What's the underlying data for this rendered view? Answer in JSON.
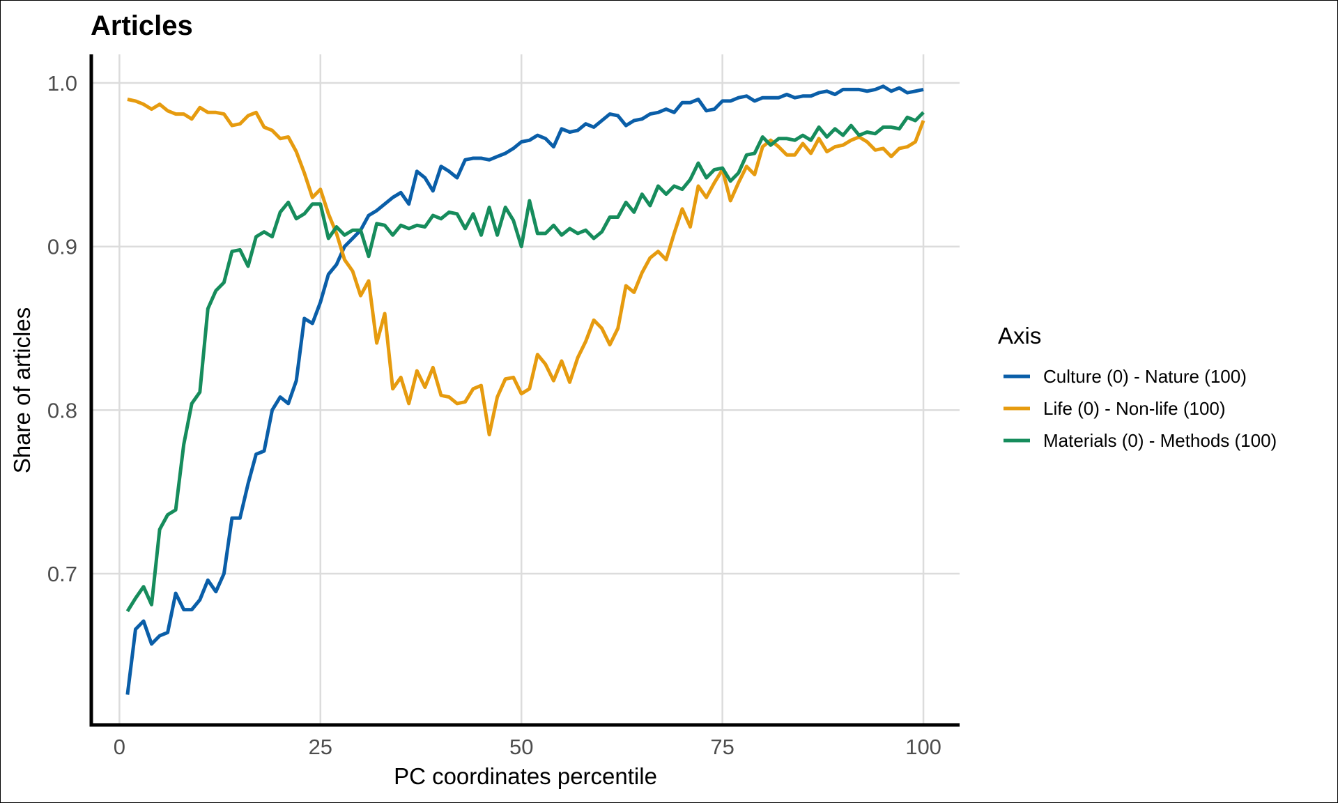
{
  "chart_data": {
    "type": "line",
    "title": "Articles",
    "xlabel": "PC coordinates percentile",
    "ylabel": "Share of articles",
    "xlim": [
      -3.5,
      104.5
    ],
    "ylim": [
      0.6075,
      1.0175
    ],
    "x_ticks": [
      0,
      25,
      50,
      75,
      100
    ],
    "y_ticks": [
      0.7,
      0.8,
      0.9,
      1.0
    ],
    "x_tick_labels": [
      "0",
      "25",
      "50",
      "75",
      "100"
    ],
    "y_tick_labels": [
      "0.7",
      "0.8",
      "0.9",
      "1.0"
    ],
    "grid": true,
    "legend": {
      "title": "Axis",
      "position": "right"
    },
    "series": [
      {
        "name": "Culture (0) - Nature (100)",
        "color": "#0a5ea8",
        "points": [
          [
            1,
            0.626
          ],
          [
            2,
            0.666
          ],
          [
            3,
            0.671
          ],
          [
            4,
            0.657
          ],
          [
            5,
            0.662
          ],
          [
            6,
            0.664
          ],
          [
            7,
            0.688
          ],
          [
            8,
            0.678
          ],
          [
            9,
            0.678
          ],
          [
            10,
            0.684
          ],
          [
            11,
            0.696
          ],
          [
            12,
            0.689
          ],
          [
            13,
            0.7
          ],
          [
            14,
            0.734
          ],
          [
            15,
            0.734
          ],
          [
            16,
            0.755
          ],
          [
            17,
            0.773
          ],
          [
            18,
            0.775
          ],
          [
            19,
            0.8
          ],
          [
            20,
            0.808
          ],
          [
            21,
            0.804
          ],
          [
            22,
            0.818
          ],
          [
            23,
            0.856
          ],
          [
            24,
            0.853
          ],
          [
            25,
            0.866
          ],
          [
            26,
            0.883
          ],
          [
            27,
            0.889
          ],
          [
            28,
            0.9
          ],
          [
            29,
            0.905
          ],
          [
            30,
            0.91
          ],
          [
            31,
            0.919
          ],
          [
            32,
            0.922
          ],
          [
            33,
            0.926
          ],
          [
            34,
            0.93
          ],
          [
            35,
            0.933
          ],
          [
            36,
            0.926
          ],
          [
            37,
            0.946
          ],
          [
            38,
            0.942
          ],
          [
            39,
            0.934
          ],
          [
            40,
            0.949
          ],
          [
            41,
            0.946
          ],
          [
            42,
            0.942
          ],
          [
            43,
            0.953
          ],
          [
            44,
            0.954
          ],
          [
            45,
            0.954
          ],
          [
            46,
            0.953
          ],
          [
            47,
            0.955
          ],
          [
            48,
            0.957
          ],
          [
            49,
            0.96
          ],
          [
            50,
            0.964
          ],
          [
            51,
            0.965
          ],
          [
            52,
            0.968
          ],
          [
            53,
            0.966
          ],
          [
            54,
            0.961
          ],
          [
            55,
            0.972
          ],
          [
            56,
            0.97
          ],
          [
            57,
            0.971
          ],
          [
            58,
            0.975
          ],
          [
            59,
            0.973
          ],
          [
            60,
            0.977
          ],
          [
            61,
            0.981
          ],
          [
            62,
            0.98
          ],
          [
            63,
            0.974
          ],
          [
            64,
            0.977
          ],
          [
            65,
            0.978
          ],
          [
            66,
            0.981
          ],
          [
            67,
            0.982
          ],
          [
            68,
            0.984
          ],
          [
            69,
            0.982
          ],
          [
            70,
            0.988
          ],
          [
            71,
            0.988
          ],
          [
            72,
            0.99
          ],
          [
            73,
            0.983
          ],
          [
            74,
            0.984
          ],
          [
            75,
            0.989
          ],
          [
            76,
            0.989
          ],
          [
            77,
            0.991
          ],
          [
            78,
            0.992
          ],
          [
            79,
            0.989
          ],
          [
            80,
            0.991
          ],
          [
            81,
            0.991
          ],
          [
            82,
            0.991
          ],
          [
            83,
            0.993
          ],
          [
            84,
            0.991
          ],
          [
            85,
            0.992
          ],
          [
            86,
            0.992
          ],
          [
            87,
            0.994
          ],
          [
            88,
            0.995
          ],
          [
            89,
            0.993
          ],
          [
            90,
            0.996
          ],
          [
            91,
            0.996
          ],
          [
            92,
            0.996
          ],
          [
            93,
            0.995
          ],
          [
            94,
            0.996
          ],
          [
            95,
            0.998
          ],
          [
            96,
            0.995
          ],
          [
            97,
            0.997
          ],
          [
            98,
            0.994
          ],
          [
            99,
            0.995
          ],
          [
            100,
            0.996
          ]
        ]
      },
      {
        "name": "Life (0) - Non-life (100)",
        "color": "#e69b0f",
        "points": [
          [
            1,
            0.99
          ],
          [
            2,
            0.989
          ],
          [
            3,
            0.987
          ],
          [
            4,
            0.984
          ],
          [
            5,
            0.987
          ],
          [
            6,
            0.983
          ],
          [
            7,
            0.981
          ],
          [
            8,
            0.981
          ],
          [
            9,
            0.978
          ],
          [
            10,
            0.985
          ],
          [
            11,
            0.982
          ],
          [
            12,
            0.982
          ],
          [
            13,
            0.981
          ],
          [
            14,
            0.974
          ],
          [
            15,
            0.975
          ],
          [
            16,
            0.98
          ],
          [
            17,
            0.982
          ],
          [
            18,
            0.973
          ],
          [
            19,
            0.971
          ],
          [
            20,
            0.966
          ],
          [
            21,
            0.967
          ],
          [
            22,
            0.958
          ],
          [
            23,
            0.945
          ],
          [
            24,
            0.93
          ],
          [
            25,
            0.935
          ],
          [
            26,
            0.92
          ],
          [
            27,
            0.908
          ],
          [
            28,
            0.892
          ],
          [
            29,
            0.885
          ],
          [
            30,
            0.87
          ],
          [
            31,
            0.879
          ],
          [
            32,
            0.841
          ],
          [
            33,
            0.859
          ],
          [
            34,
            0.813
          ],
          [
            35,
            0.82
          ],
          [
            36,
            0.804
          ],
          [
            37,
            0.824
          ],
          [
            38,
            0.814
          ],
          [
            39,
            0.826
          ],
          [
            40,
            0.809
          ],
          [
            41,
            0.808
          ],
          [
            42,
            0.804
          ],
          [
            43,
            0.805
          ],
          [
            44,
            0.813
          ],
          [
            45,
            0.815
          ],
          [
            46,
            0.785
          ],
          [
            47,
            0.808
          ],
          [
            48,
            0.819
          ],
          [
            49,
            0.82
          ],
          [
            50,
            0.81
          ],
          [
            51,
            0.813
          ],
          [
            52,
            0.834
          ],
          [
            53,
            0.828
          ],
          [
            54,
            0.818
          ],
          [
            55,
            0.83
          ],
          [
            56,
            0.817
          ],
          [
            57,
            0.832
          ],
          [
            58,
            0.842
          ],
          [
            59,
            0.855
          ],
          [
            60,
            0.85
          ],
          [
            61,
            0.84
          ],
          [
            62,
            0.85
          ],
          [
            63,
            0.876
          ],
          [
            64,
            0.872
          ],
          [
            65,
            0.884
          ],
          [
            66,
            0.893
          ],
          [
            67,
            0.897
          ],
          [
            68,
            0.892
          ],
          [
            69,
            0.908
          ],
          [
            70,
            0.923
          ],
          [
            71,
            0.912
          ],
          [
            72,
            0.937
          ],
          [
            73,
            0.93
          ],
          [
            74,
            0.939
          ],
          [
            75,
            0.947
          ],
          [
            76,
            0.928
          ],
          [
            77,
            0.939
          ],
          [
            78,
            0.949
          ],
          [
            79,
            0.944
          ],
          [
            80,
            0.961
          ],
          [
            81,
            0.965
          ],
          [
            82,
            0.961
          ],
          [
            83,
            0.956
          ],
          [
            84,
            0.956
          ],
          [
            85,
            0.963
          ],
          [
            86,
            0.957
          ],
          [
            87,
            0.966
          ],
          [
            88,
            0.958
          ],
          [
            89,
            0.961
          ],
          [
            90,
            0.962
          ],
          [
            91,
            0.965
          ],
          [
            92,
            0.967
          ],
          [
            93,
            0.964
          ],
          [
            94,
            0.959
          ],
          [
            95,
            0.96
          ],
          [
            96,
            0.955
          ],
          [
            97,
            0.96
          ],
          [
            98,
            0.961
          ],
          [
            99,
            0.964
          ],
          [
            100,
            0.977
          ]
        ]
      },
      {
        "name": "Materials (0) - Methods (100)",
        "color": "#168c5c",
        "points": [
          [
            1,
            0.677
          ],
          [
            2,
            0.685
          ],
          [
            3,
            0.692
          ],
          [
            4,
            0.681
          ],
          [
            5,
            0.727
          ],
          [
            6,
            0.736
          ],
          [
            7,
            0.739
          ],
          [
            8,
            0.779
          ],
          [
            9,
            0.804
          ],
          [
            10,
            0.811
          ],
          [
            11,
            0.862
          ],
          [
            12,
            0.873
          ],
          [
            13,
            0.878
          ],
          [
            14,
            0.897
          ],
          [
            15,
            0.898
          ],
          [
            16,
            0.888
          ],
          [
            17,
            0.906
          ],
          [
            18,
            0.909
          ],
          [
            19,
            0.906
          ],
          [
            20,
            0.921
          ],
          [
            21,
            0.927
          ],
          [
            22,
            0.917
          ],
          [
            23,
            0.92
          ],
          [
            24,
            0.926
          ],
          [
            25,
            0.926
          ],
          [
            26,
            0.905
          ],
          [
            27,
            0.912
          ],
          [
            28,
            0.907
          ],
          [
            29,
            0.91
          ],
          [
            30,
            0.91
          ],
          [
            31,
            0.894
          ],
          [
            32,
            0.914
          ],
          [
            33,
            0.913
          ],
          [
            34,
            0.907
          ],
          [
            35,
            0.913
          ],
          [
            36,
            0.911
          ],
          [
            37,
            0.913
          ],
          [
            38,
            0.912
          ],
          [
            39,
            0.919
          ],
          [
            40,
            0.917
          ],
          [
            41,
            0.921
          ],
          [
            42,
            0.92
          ],
          [
            43,
            0.911
          ],
          [
            44,
            0.92
          ],
          [
            45,
            0.907
          ],
          [
            46,
            0.924
          ],
          [
            47,
            0.907
          ],
          [
            48,
            0.924
          ],
          [
            49,
            0.916
          ],
          [
            50,
            0.9
          ],
          [
            51,
            0.928
          ],
          [
            52,
            0.908
          ],
          [
            53,
            0.908
          ],
          [
            54,
            0.913
          ],
          [
            55,
            0.907
          ],
          [
            56,
            0.911
          ],
          [
            57,
            0.908
          ],
          [
            58,
            0.91
          ],
          [
            59,
            0.905
          ],
          [
            60,
            0.909
          ],
          [
            61,
            0.918
          ],
          [
            62,
            0.918
          ],
          [
            63,
            0.927
          ],
          [
            64,
            0.921
          ],
          [
            65,
            0.932
          ],
          [
            66,
            0.925
          ],
          [
            67,
            0.937
          ],
          [
            68,
            0.932
          ],
          [
            69,
            0.937
          ],
          [
            70,
            0.935
          ],
          [
            71,
            0.941
          ],
          [
            72,
            0.951
          ],
          [
            73,
            0.942
          ],
          [
            74,
            0.947
          ],
          [
            75,
            0.948
          ],
          [
            76,
            0.94
          ],
          [
            77,
            0.945
          ],
          [
            78,
            0.956
          ],
          [
            79,
            0.957
          ],
          [
            80,
            0.967
          ],
          [
            81,
            0.962
          ],
          [
            82,
            0.966
          ],
          [
            83,
            0.966
          ],
          [
            84,
            0.965
          ],
          [
            85,
            0.968
          ],
          [
            86,
            0.965
          ],
          [
            87,
            0.973
          ],
          [
            88,
            0.967
          ],
          [
            89,
            0.972
          ],
          [
            90,
            0.968
          ],
          [
            91,
            0.974
          ],
          [
            92,
            0.968
          ],
          [
            93,
            0.97
          ],
          [
            94,
            0.969
          ],
          [
            95,
            0.973
          ],
          [
            96,
            0.973
          ],
          [
            97,
            0.972
          ],
          [
            98,
            0.979
          ],
          [
            99,
            0.977
          ],
          [
            100,
            0.982
          ]
        ]
      }
    ]
  }
}
